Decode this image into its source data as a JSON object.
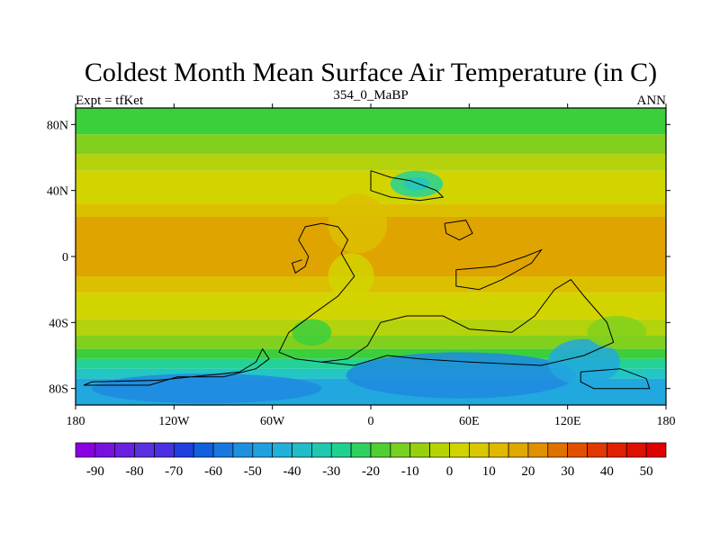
{
  "figure": {
    "title": "Coldest Month Mean Surface Air Temperature (in C)",
    "left_subtitle": "Expt = tfKet",
    "center_subtitle": "354_0_MaBP",
    "right_subtitle": "ANN"
  },
  "map": {
    "lat_ticks": [
      "80N",
      "40N",
      "0",
      "40S",
      "80S"
    ],
    "lat_values": [
      80,
      40,
      0,
      -40,
      -80
    ],
    "lon_ticks": [
      "180",
      "120W",
      "60W",
      "0",
      "60E",
      "120E",
      "180"
    ],
    "lon_values": [
      -180,
      -120,
      -60,
      0,
      60,
      120,
      180
    ],
    "lat_range": [
      -90,
      90
    ],
    "lon_range": [
      -180,
      180
    ]
  },
  "colorbar": {
    "labels": [
      "-90",
      "-80",
      "-70",
      "-60",
      "-50",
      "-40",
      "-30",
      "-20",
      "-10",
      "0",
      "10",
      "20",
      "30",
      "40",
      "50"
    ],
    "colors": [
      "#8a00e0",
      "#7a10e0",
      "#6a20e0",
      "#5a30e0",
      "#4a30e0",
      "#1f3fe0",
      "#1060e0",
      "#1878e0",
      "#1e90e0",
      "#20a0e0",
      "#20b0d8",
      "#20bcc8",
      "#20c8b0",
      "#20d090",
      "#30d060",
      "#50d030",
      "#78d020",
      "#98d010",
      "#b8d400",
      "#d0d400",
      "#d8c800",
      "#e0b800",
      "#e0a800",
      "#e09000",
      "#e07000",
      "#e05000",
      "#e03800",
      "#e02000",
      "#e01000",
      "#e00000"
    ]
  },
  "map_colors": {
    "polar_cold": "#1e8ae0",
    "cold": "#21a8de",
    "cyan": "#22c6c2",
    "teal": "#24d296",
    "green": "#3ccf3c",
    "lime": "#82d01e",
    "yellow_green": "#b4d30c",
    "yellow": "#d2d400",
    "mustard": "#dcc000",
    "orange": "#e0a400"
  }
}
